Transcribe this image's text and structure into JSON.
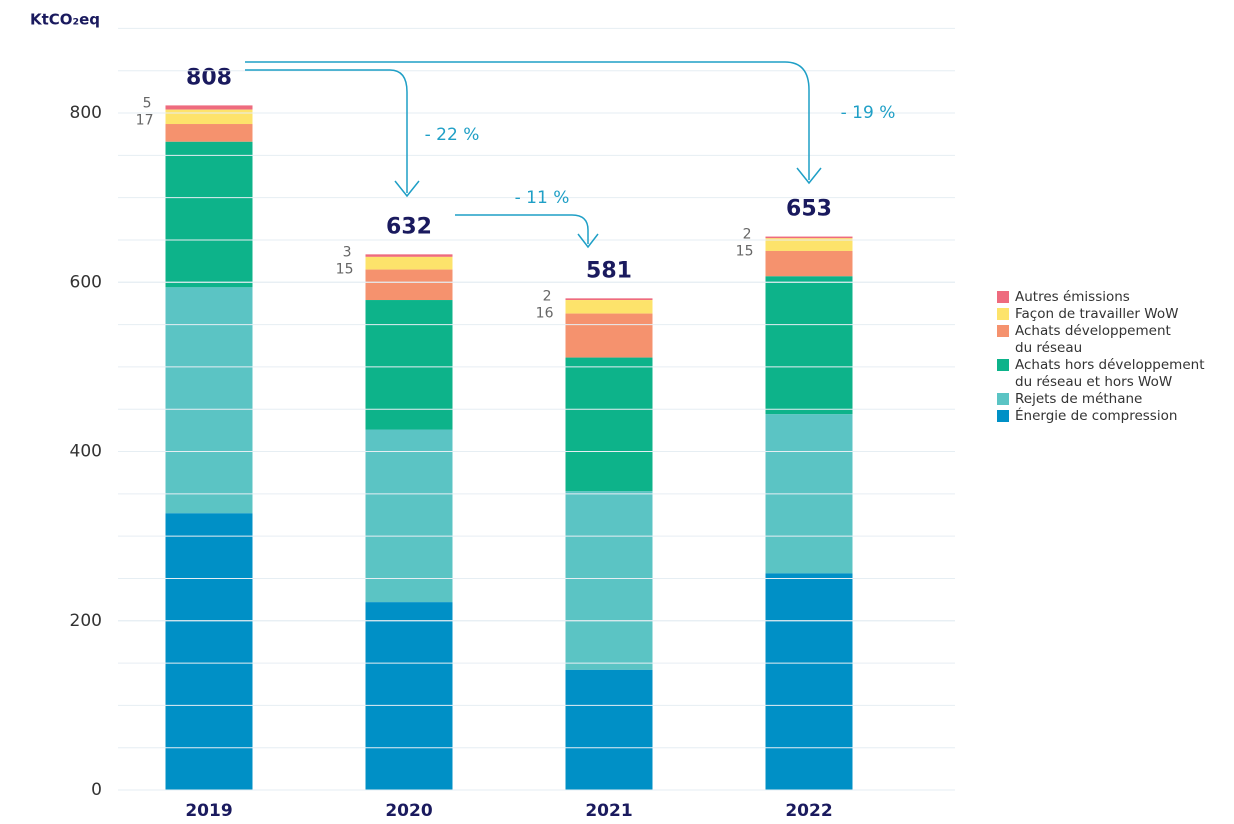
{
  "chart_data": {
    "type": "stacked_bar",
    "y_label": "KtCO₂eq",
    "categories": [
      "2019",
      "2020",
      "2021",
      "2022"
    ],
    "series": [
      {
        "name": "Énergie de compression",
        "color": "#0090c6",
        "values": [
          327,
          222,
          142,
          256
        ]
      },
      {
        "name": "Rejets de méthane",
        "color": "#5bc4c4",
        "values": [
          267,
          204,
          211,
          188
        ]
      },
      {
        "name": "Achats hors développement\ndu réseau et hors WoW",
        "color": "#0db38a",
        "values": [
          172,
          153,
          158,
          163
        ]
      },
      {
        "name": "Achats développement\ndu réseau",
        "color": "#f5926e",
        "values": [
          21,
          36,
          52,
          30
        ]
      },
      {
        "name": "Façon de travailler WoW",
        "color": "#fde36b",
        "values": [
          17,
          15,
          16,
          15
        ]
      },
      {
        "name": "Autres émissions",
        "color": "#ee6b7e",
        "values": [
          5,
          3,
          2,
          2
        ]
      }
    ],
    "totals": [
      808,
      632,
      581,
      653
    ],
    "annotations": [
      "- 22 %",
      "- 11 %",
      "- 19 %"
    ],
    "ylim": [
      0,
      900
    ],
    "yticks": [
      0,
      200,
      400,
      600,
      800
    ],
    "grid": true,
    "minor_grid_step": 50,
    "legend": "right"
  }
}
